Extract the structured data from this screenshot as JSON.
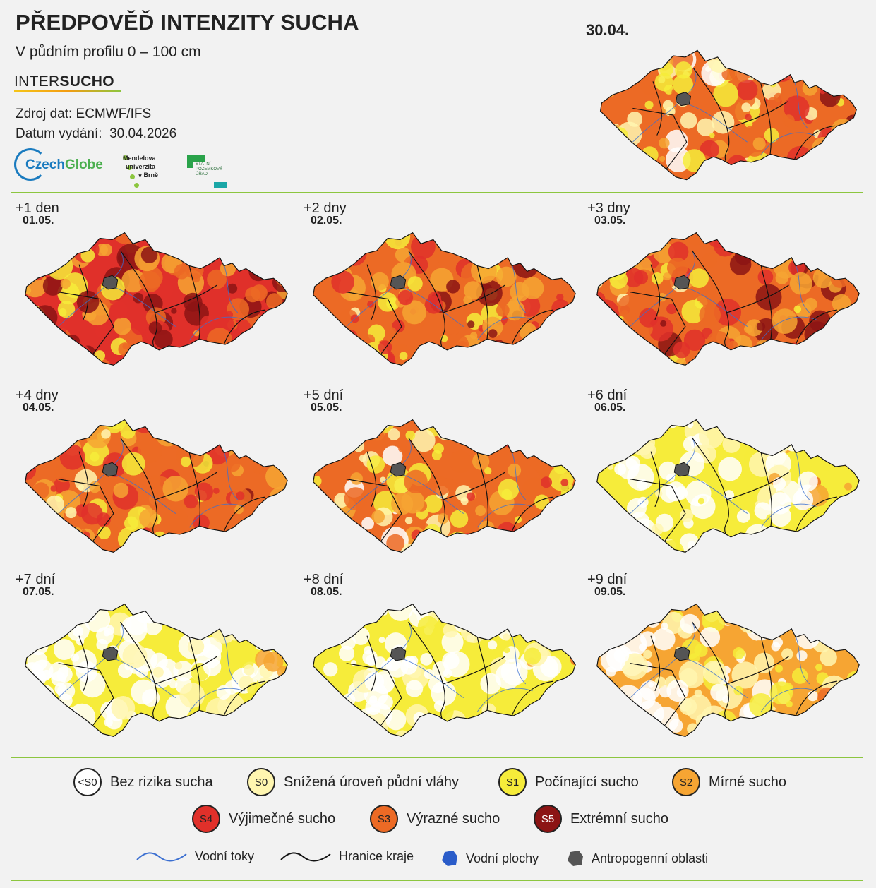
{
  "header": {
    "title": "PŘEDPOVĚĎ INTENZITY SUCHA",
    "subtitle": "V půdním profilu 0 – 100 cm",
    "brand_light": "INTER",
    "brand_bold": "SUCHO",
    "source_line": "Zdroj dat: ECMWF/IFS",
    "issue_label": "Datum vydání:",
    "issue_date": "30.04.2026"
  },
  "logos": {
    "czechglobe_a": "Czech",
    "czechglobe_b": "Globe",
    "mendelu": [
      "Mendelova",
      "univerzita",
      "v Brně"
    ],
    "spu": [
      "STÁTNÍ",
      "POZEMKOVÝ",
      "ÚŘAD"
    ]
  },
  "current_map": {
    "date": "30.04.",
    "drought_level": 0.62
  },
  "forecast_panels": [
    {
      "label": "+1 den",
      "date": "01.05.",
      "drought_level": 0.78
    },
    {
      "label": "+2 dny",
      "date": "02.05.",
      "drought_level": 0.74
    },
    {
      "label": "+3 dny",
      "date": "03.05.",
      "drought_level": 0.74
    },
    {
      "label": "+4 dny",
      "date": "04.05.",
      "drought_level": 0.72
    },
    {
      "label": "+5 dní",
      "date": "05.05.",
      "drought_level": 0.62
    },
    {
      "label": "+6 dní",
      "date": "06.05.",
      "drought_level": 0.4
    },
    {
      "label": "+7 dní",
      "date": "07.05.",
      "drought_level": 0.28
    },
    {
      "label": "+8 dní",
      "date": "08.05.",
      "drought_level": 0.36
    },
    {
      "label": "+9 dní",
      "date": "09.05.",
      "drought_level": 0.42
    }
  ],
  "legend": {
    "classes": [
      {
        "code": "<S0",
        "label": "Bez rizika sucha",
        "color": "#ffffff"
      },
      {
        "code": "S0",
        "label": "Snížená úroveň půdní vláhy",
        "color": "#fff6b0"
      },
      {
        "code": "S1",
        "label": "Počínající sucho",
        "color": "#f6ec3a"
      },
      {
        "code": "S2",
        "label": "Mírné sucho",
        "color": "#f6a533"
      },
      {
        "code": "S4",
        "label": "Výjimečné sucho",
        "color": "#e0302a"
      },
      {
        "code": "S3",
        "label": "Výrazné sucho",
        "color": "#ec6a25"
      },
      {
        "code": "S5",
        "label": "Extrémní sucho",
        "color": "#8c1414"
      }
    ],
    "symbols": [
      {
        "label": "Vodní toky",
        "icon": "river-line-icon",
        "color": "#3b6fd1"
      },
      {
        "label": "Hranice kraje",
        "icon": "border-line-icon",
        "color": "#111111"
      },
      {
        "label": "Vodní plochy",
        "icon": "water-body-icon",
        "color": "#2a5cc9"
      },
      {
        "label": "Antropogenní oblasti",
        "icon": "urban-area-icon",
        "color": "#555555"
      }
    ]
  }
}
